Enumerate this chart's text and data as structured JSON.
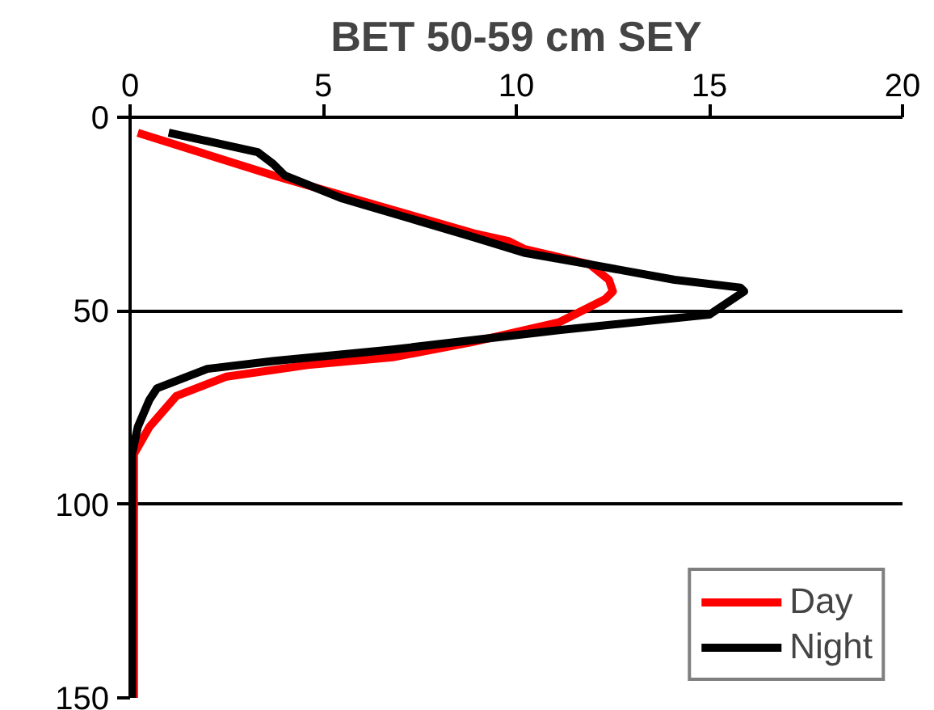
{
  "chart_data": {
    "type": "line",
    "title": "BET 50-59 cm SEY",
    "xlim": [
      0,
      20
    ],
    "xticks": [
      0,
      5,
      10,
      15,
      20
    ],
    "ylim": [
      150,
      0
    ],
    "yticks": [
      0,
      50,
      100,
      150
    ],
    "grid": "y",
    "legend": "bottom right",
    "marker": "none",
    "line_style": "solid",
    "series": [
      {
        "name": "Day",
        "color": "#ff0000",
        "x": [
          0.2,
          3.7,
          8.9,
          9.8,
          10.2,
          11.9,
          12.4,
          12.5,
          12.3,
          11.1,
          8.9,
          6.8,
          4.6,
          2.5,
          1.2,
          0.5,
          0.1,
          0.1,
          0.1,
          0.1
        ],
        "values": [
          4,
          15,
          30,
          32,
          34,
          38,
          42,
          45,
          47,
          53,
          58,
          62,
          64,
          67,
          72,
          80,
          87,
          100,
          125,
          150
        ]
      },
      {
        "name": "Night",
        "color": "#000000",
        "x": [
          1.0,
          3.3,
          3.7,
          4.0,
          5.5,
          8.9,
          10.2,
          11.9,
          14.1,
          15.8,
          15.9,
          15.0,
          11.1,
          6.8,
          3.7,
          2.0,
          0.7,
          0.5,
          0.2,
          0.05,
          0.05,
          0.05
        ],
        "values": [
          4,
          9,
          12,
          15,
          21,
          31,
          35,
          38,
          42,
          44,
          45,
          51,
          55,
          60,
          63,
          65,
          70,
          73,
          80,
          87,
          120,
          150
        ]
      }
    ]
  }
}
